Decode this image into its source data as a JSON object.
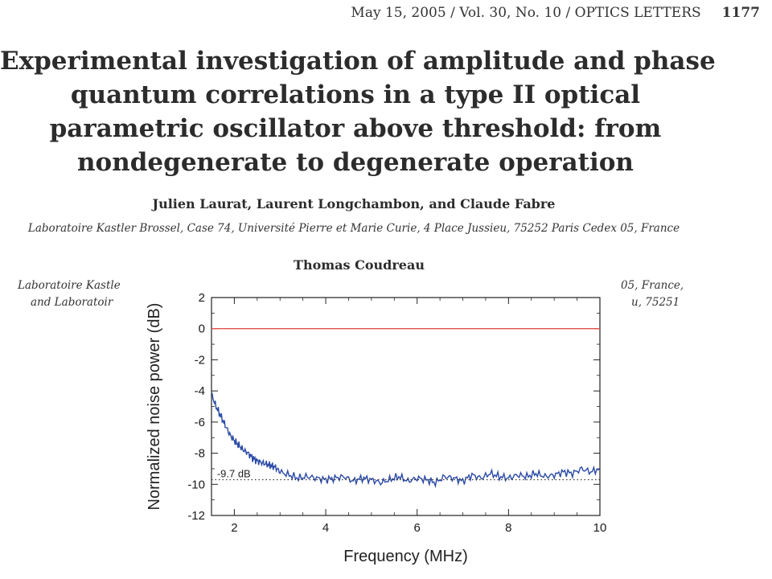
{
  "header": {
    "running_head": "May 15, 2005 / Vol. 30, No. 10 / OPTICS LETTERS",
    "page_number": "1177"
  },
  "paper": {
    "title_lines": [
      "Experimental investigation of amplitude and phase",
      "quantum correlations in a type II optical",
      "parametric oscillator above threshold: from",
      "nondegenerate to degenerate operation"
    ],
    "authors": "Julien Laurat, Laurent Longchambon, and Claude Fabre",
    "affiliation_1": "Laboratoire Kastler Brossel, Case 74, Université Pierre et Marie Curie, 4 Place Jussieu, 75252 Paris Cedex 05, France",
    "author_2": "Thomas Coudreau",
    "affiliation_2_left_1": "Laboratoire Kastle",
    "affiliation_2_left_2": "and Laboratoir",
    "affiliation_2_right_1": "05, France,",
    "affiliation_2_right_2": "u, 75251"
  },
  "chart_data": {
    "type": "line",
    "xlabel": "Frequency (MHz)",
    "ylabel": "Normalized noise power (dB)",
    "xlim": [
      1.5,
      10
    ],
    "ylim": [
      -12,
      2
    ],
    "x_ticks": [
      2,
      4,
      6,
      8,
      10
    ],
    "y_ticks": [
      2,
      0,
      -2,
      -4,
      -6,
      -8,
      -10,
      -12
    ],
    "grid": false,
    "legend": "none",
    "series": [
      {
        "style": "solid",
        "color": "#e0524a",
        "x": [
          1.5,
          10
        ],
        "y": [
          0,
          0
        ]
      },
      {
        "style": "solid",
        "color": "#2b4aa6",
        "x": [
          1.5,
          1.6,
          1.7,
          1.8,
          1.9,
          2.0,
          2.1,
          2.2,
          2.3,
          2.4,
          2.5,
          2.6,
          2.7,
          2.8,
          2.9,
          3.0,
          3.2,
          3.4,
          3.6,
          3.8,
          4.0,
          4.2,
          4.4,
          4.6,
          4.8,
          5.0,
          5.2,
          5.4,
          5.6,
          5.8,
          6.0,
          6.2,
          6.4,
          6.6,
          6.8,
          7.0,
          7.2,
          7.4,
          7.6,
          7.8,
          8.0,
          8.2,
          8.4,
          8.6,
          8.8,
          9.0,
          9.2,
          9.4,
          9.6,
          9.8,
          10.0
        ],
        "y": [
          -4.2,
          -5.0,
          -5.6,
          -6.2,
          -6.8,
          -7.2,
          -7.5,
          -7.8,
          -8.0,
          -8.3,
          -8.5,
          -8.6,
          -8.7,
          -8.8,
          -8.9,
          -9.2,
          -9.4,
          -9.6,
          -9.5,
          -9.6,
          -9.7,
          -9.6,
          -9.5,
          -9.8,
          -9.6,
          -9.7,
          -9.9,
          -9.7,
          -9.5,
          -9.8,
          -9.6,
          -9.7,
          -9.9,
          -9.5,
          -9.6,
          -9.8,
          -9.4,
          -9.6,
          -9.3,
          -9.5,
          -9.6,
          -9.4,
          -9.5,
          -9.3,
          -9.5,
          -9.4,
          -9.2,
          -9.3,
          -9.0,
          -9.2,
          -9.0
        ]
      },
      {
        "style": "dotted",
        "color": "#333333",
        "x": [
          1.5,
          10
        ],
        "y": [
          -9.7,
          -9.7
        ]
      }
    ],
    "annotations": [
      {
        "text": "-9.7 dB",
        "x": 1.62,
        "y": -9.55
      }
    ]
  }
}
